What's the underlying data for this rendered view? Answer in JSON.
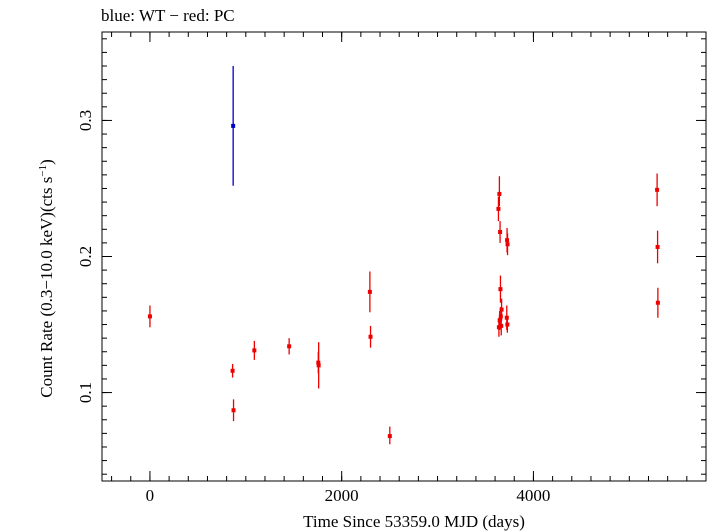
{
  "chart_data": {
    "type": "scatter",
    "title": "blue: WT − red: PC",
    "xlabel": "Time Since 53359.0 MJD (days)",
    "ylabel_main": "Count Rate (0.3−10.0 keV)(cts s",
    "ylabel_sup": "−1",
    "ylabel_end": ")",
    "xlim": [
      -500,
      5800
    ],
    "ylim": [
      0.035,
      0.365
    ],
    "x_ticks": [
      0,
      2000,
      4000
    ],
    "x_tick_labels": [
      "0",
      "2000",
      "4000"
    ],
    "y_ticks": [
      0.1,
      0.2,
      0.3
    ],
    "y_tick_labels": [
      "0.1",
      "0.2",
      "0.3"
    ],
    "x_minor_step": 200,
    "y_minor_step": 0.01,
    "grid": false,
    "series": [
      {
        "name": "WT",
        "color": "#0000cc",
        "points": [
          {
            "x": 868,
            "y": 0.296,
            "ylo": 0.252,
            "yhi": 0.34
          }
        ]
      },
      {
        "name": "PC",
        "color": "#ee0000",
        "points": [
          {
            "x": 0,
            "y": 0.156,
            "ylo": 0.148,
            "yhi": 0.164
          },
          {
            "x": 862,
            "y": 0.116,
            "ylo": 0.111,
            "yhi": 0.121
          },
          {
            "x": 872,
            "y": 0.087,
            "ylo": 0.079,
            "yhi": 0.095
          },
          {
            "x": 1089,
            "y": 0.131,
            "ylo": 0.124,
            "yhi": 0.138
          },
          {
            "x": 1452,
            "y": 0.134,
            "ylo": 0.128,
            "yhi": 0.14
          },
          {
            "x": 1756,
            "y": 0.122,
            "ylo": 0.114,
            "yhi": 0.13
          },
          {
            "x": 1760,
            "y": 0.12,
            "ylo": 0.103,
            "yhi": 0.137
          },
          {
            "x": 2294,
            "y": 0.174,
            "ylo": 0.159,
            "yhi": 0.189
          },
          {
            "x": 2301,
            "y": 0.141,
            "ylo": 0.133,
            "yhi": 0.149
          },
          {
            "x": 2502,
            "y": 0.068,
            "ylo": 0.062,
            "yhi": 0.075
          },
          {
            "x": 3635,
            "y": 0.235,
            "ylo": 0.226,
            "yhi": 0.244
          },
          {
            "x": 3645,
            "y": 0.246,
            "ylo": 0.237,
            "yhi": 0.259
          },
          {
            "x": 3652,
            "y": 0.218,
            "ylo": 0.21,
            "yhi": 0.226
          },
          {
            "x": 3656,
            "y": 0.176,
            "ylo": 0.166,
            "yhi": 0.186
          },
          {
            "x": 3640,
            "y": 0.148,
            "ylo": 0.141,
            "yhi": 0.155
          },
          {
            "x": 3648,
            "y": 0.153,
            "ylo": 0.146,
            "yhi": 0.16
          },
          {
            "x": 3660,
            "y": 0.156,
            "ylo": 0.149,
            "yhi": 0.163
          },
          {
            "x": 3668,
            "y": 0.161,
            "ylo": 0.153,
            "yhi": 0.169
          },
          {
            "x": 3664,
            "y": 0.149,
            "ylo": 0.142,
            "yhi": 0.156
          },
          {
            "x": 3725,
            "y": 0.212,
            "ylo": 0.203,
            "yhi": 0.221
          },
          {
            "x": 3730,
            "y": 0.209,
            "ylo": 0.201,
            "yhi": 0.217
          },
          {
            "x": 3722,
            "y": 0.155,
            "ylo": 0.146,
            "yhi": 0.164
          },
          {
            "x": 3728,
            "y": 0.15,
            "ylo": 0.144,
            "yhi": 0.156
          },
          {
            "x": 5290,
            "y": 0.249,
            "ylo": 0.237,
            "yhi": 0.261
          },
          {
            "x": 5295,
            "y": 0.207,
            "ylo": 0.195,
            "yhi": 0.219
          },
          {
            "x": 5298,
            "y": 0.166,
            "ylo": 0.155,
            "yhi": 0.177
          }
        ]
      }
    ]
  }
}
